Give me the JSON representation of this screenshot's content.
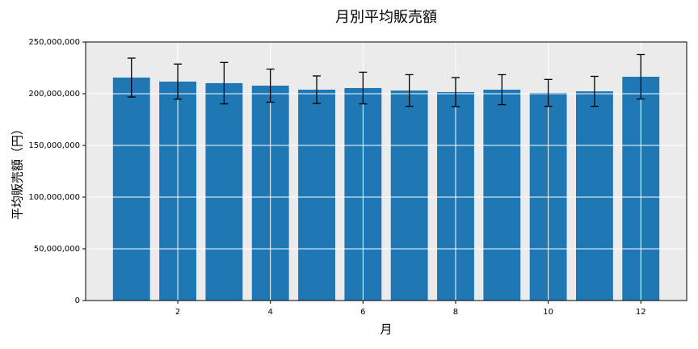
{
  "chart_data": {
    "type": "bar",
    "title": "月別平均販売額",
    "x_label": "月",
    "y_label": "平均販売額（円）",
    "x": [
      1,
      2,
      3,
      4,
      5,
      6,
      7,
      8,
      9,
      10,
      11,
      12
    ],
    "values": [
      215600000,
      211700000,
      210200000,
      207800000,
      203900000,
      205500000,
      203100000,
      201600000,
      203900000,
      200800000,
      202300000,
      216400000
    ],
    "errors": [
      18800000,
      17000000,
      20000000,
      16000000,
      13300000,
      15300000,
      15300000,
      14000000,
      14500000,
      13000000,
      14500000,
      21500000
    ],
    "color": "#1f77b4",
    "xlim": [
      0.01,
      12.99
    ],
    "xticks": [
      2,
      4,
      6,
      8,
      10,
      12
    ],
    "ylim": [
      0,
      250000000
    ],
    "yticks": [
      0,
      {
        "value": 50000000,
        "label": "50,000,000"
      },
      {
        "value": 100000000,
        "label": "100,000,000"
      },
      {
        "value": 150000000,
        "label": "150,000,000"
      },
      {
        "value": 200000000,
        "label": "200,000,000"
      },
      {
        "value": 250000000,
        "label": "250,000,000"
      }
    ],
    "grid": true
  }
}
